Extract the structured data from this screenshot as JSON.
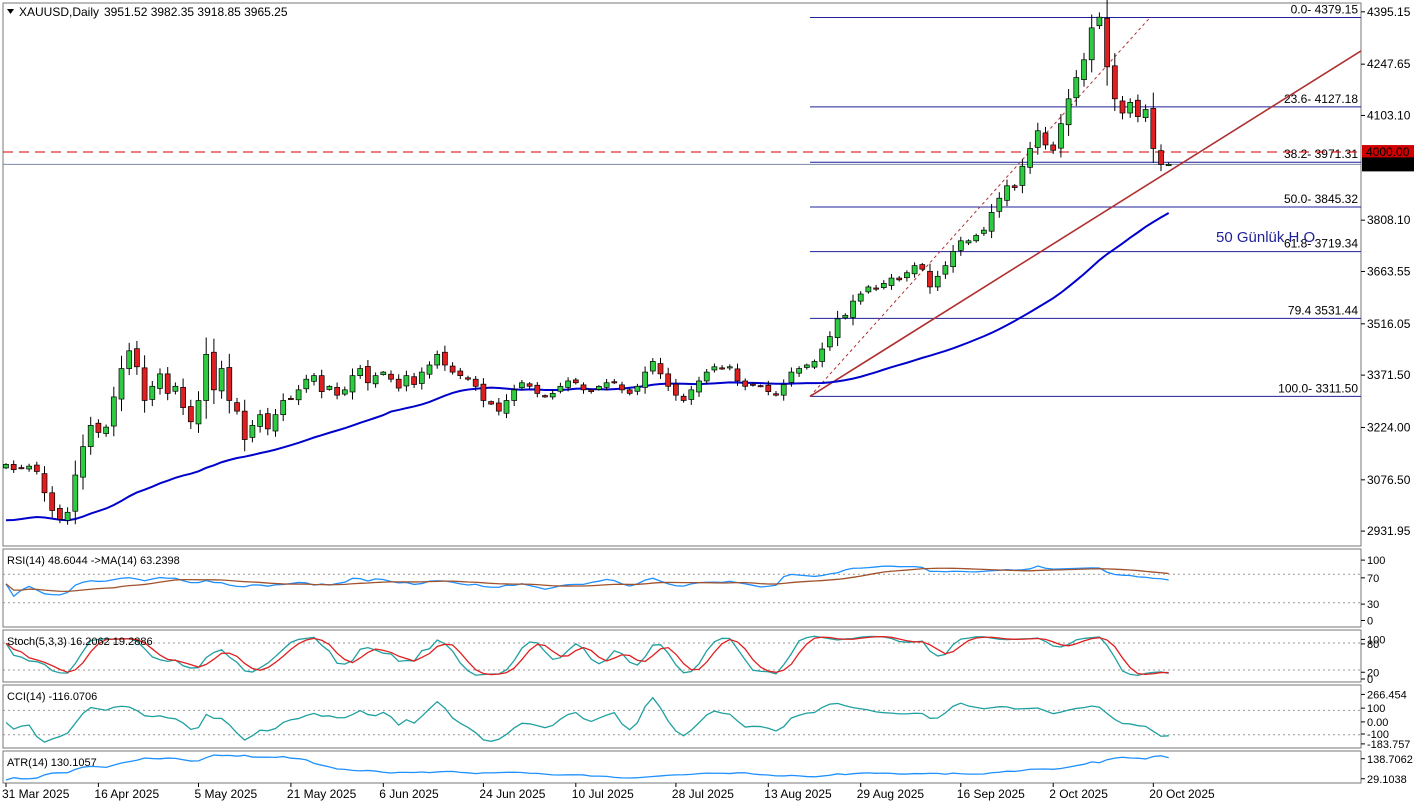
{
  "header": {
    "symbol": "XAUUSD,Daily",
    "ohlc": "3951.52 3982.35 3918.85 3965.25"
  },
  "chart_data": {
    "type": "candlestick",
    "price_axis": {
      "ticks": [
        "4395.15",
        "4247.65",
        "4103.10",
        "3808.10",
        "3663.55",
        "3516.05",
        "3371.50",
        "3224.00",
        "3076.50",
        "2931.95"
      ],
      "range": [
        2890,
        4420
      ],
      "tags": [
        {
          "value": 4000.0,
          "text": "4000.00",
          "color": "#d00000"
        },
        {
          "value": 3965.25,
          "text": "3965.25",
          "color": "#000000"
        }
      ]
    },
    "date_axis": {
      "labels": [
        "31 Mar 2025",
        "16 Apr 2025",
        "5 May 2025",
        "21 May 2025",
        "6 Jun 2025",
        "24 Jun 2025",
        "10 Jul 2025",
        "28 Jul 2025",
        "13 Aug 2025",
        "29 Aug 2025",
        "16 Sep 2025",
        "2 Oct 2025",
        "20 Oct 2025"
      ],
      "label_bar_index": [
        0,
        12,
        25,
        37,
        49,
        62,
        74,
        87,
        99,
        111,
        124,
        136,
        149
      ]
    },
    "fibonacci": [
      {
        "text": "0.0- 4379.15",
        "value": 4379.15
      },
      {
        "text": "23.6- 4127.18",
        "value": 4127.18
      },
      {
        "text": "38.2- 3971.31",
        "value": 3971.31
      },
      {
        "text": "50.0- 3845.32",
        "value": 3845.32
      },
      {
        "text": "61.8- 3719.34",
        "value": 3719.34
      },
      {
        "text": "79.4 3531.44",
        "value": 3531.44
      },
      {
        "text": "100.0- 3311.50",
        "value": 3311.5
      }
    ],
    "annotation": "50 Günlük H.O",
    "horizontal_line": 4000.0,
    "closes": [
      3120,
      3105,
      3110,
      3115,
      3100,
      3040,
      2990,
      2965,
      2985,
      3090,
      3170,
      3230,
      3210,
      3225,
      3310,
      3390,
      3440,
      3395,
      3300,
      3340,
      3375,
      3320,
      3340,
      3280,
      3240,
      3300,
      3430,
      3330,
      3390,
      3300,
      3270,
      3190,
      3230,
      3260,
      3220,
      3260,
      3300,
      3305,
      3330,
      3360,
      3370,
      3325,
      3340,
      3315,
      3330,
      3370,
      3390,
      3350,
      3370,
      3380,
      3360,
      3335,
      3370,
      3345,
      3380,
      3400,
      3430,
      3400,
      3380,
      3370,
      3360,
      3340,
      3300,
      3290,
      3270,
      3300,
      3330,
      3350,
      3340,
      3320,
      3310,
      3320,
      3340,
      3355,
      3350,
      3330,
      3325,
      3340,
      3350,
      3350,
      3330,
      3320,
      3340,
      3380,
      3410,
      3375,
      3340,
      3315,
      3300,
      3330,
      3355,
      3380,
      3395,
      3390,
      3395,
      3355,
      3340,
      3345,
      3340,
      3325,
      3315,
      3345,
      3380,
      3390,
      3400,
      3410,
      3445,
      3480,
      3530,
      3540,
      3580,
      3600,
      3620,
      3615,
      3630,
      3645,
      3640,
      3660,
      3680,
      3670,
      3620,
      3650,
      3680,
      3720,
      3750,
      3750,
      3765,
      3780,
      3830,
      3870,
      3905,
      3900,
      3960,
      4010,
      4060,
      4020,
      4005,
      4080,
      4150,
      4210,
      4260,
      4350,
      4380,
      4240,
      4150,
      4110,
      4140,
      4100,
      4120,
      4010,
      3965,
      3965
    ]
  },
  "indicators": {
    "rsi": {
      "label": "RSI(14) 48.6044  ->MA(14) 63.2398",
      "ticks": [
        "100",
        "70",
        "30",
        "0"
      ]
    },
    "stoch": {
      "label": "Stoch(5,3,3) 16.2062 19.2886",
      "ticks": [
        "100",
        "80",
        "20",
        "0"
      ]
    },
    "cci": {
      "label": "CCI(14) -116.0706",
      "ticks": [
        "266.454",
        "100",
        "0.00",
        "-100",
        "-183.757"
      ]
    },
    "atr": {
      "label": "ATR(14) 130.1057",
      "ticks": [
        "138.7062",
        "29.1038"
      ]
    }
  },
  "colors": {
    "bull": "#2ecc40",
    "bear": "#e02020",
    "ma50": "#0000cc",
    "trendline": "#b03030",
    "fib": "#1f1f99",
    "rsi": "#1e90ff",
    "rsi_ma": "#a0522d",
    "stoch_k": "#20a0a0",
    "stoch_d": "#e02020",
    "cci": "#20a0a0",
    "atr": "#1e90ff"
  }
}
